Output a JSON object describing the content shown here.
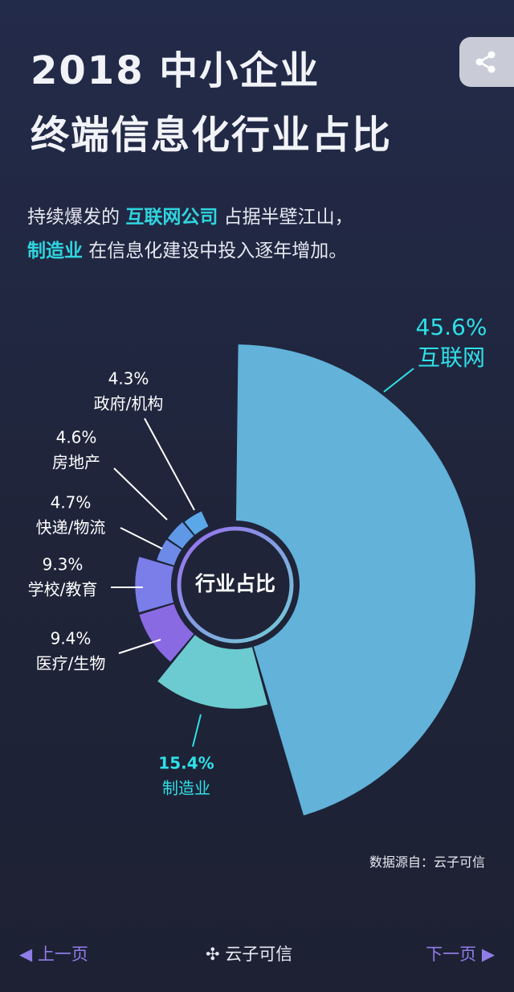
{
  "header": {
    "title_lines": [
      "2018 中小企业",
      "终端信息化行业占比"
    ],
    "subtitle_line1": [
      "持续爆发的 ",
      "互联网公司",
      " 占据半壁江山，"
    ],
    "subtitle_line2": [
      "制造业",
      " 在信息化建设中投入逐年增加。"
    ]
  },
  "chart_data": {
    "type": "pie",
    "center_label": "行业占比",
    "categories": [
      "互联网",
      "制造业",
      "医疗/生物",
      "学校/教育",
      "快递/物流",
      "房地产",
      "政府/机构"
    ],
    "values": [
      45.6,
      15.4,
      9.4,
      9.3,
      4.7,
      4.6,
      4.3
    ],
    "value_labels": [
      "45.6%",
      "15.4%",
      "9.4%",
      "9.3%",
      "4.7%",
      "4.6%",
      "4.3%"
    ],
    "colors": [
      "#62b2da",
      "#6ccbd0",
      "#8a6ae2",
      "#7b7ee8",
      "#6d8ae8",
      "#5f98e6",
      "#5ba8e8"
    ]
  },
  "source": "数据源自：云子可信",
  "footer": {
    "prev": "上一页",
    "brand": "云子可信",
    "next": "下一页"
  }
}
